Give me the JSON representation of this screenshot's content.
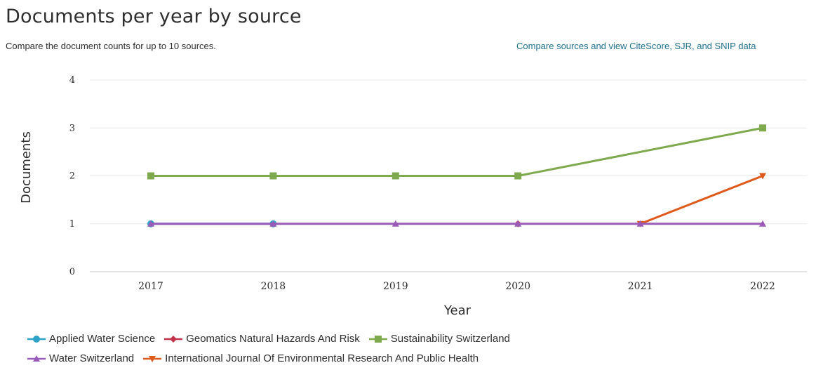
{
  "header": {
    "title": "Documents per year by source",
    "subtitle": "Compare the document counts for up to 10 sources.",
    "compare_link": "Compare sources and view CiteScore, SJR, and SNIP data"
  },
  "chart_data": {
    "type": "line",
    "xlabel": "Year",
    "ylabel": "Documents",
    "x": [
      "2017",
      "2018",
      "2019",
      "2020",
      "2021",
      "2022"
    ],
    "yticks": [
      "0",
      "1",
      "2",
      "3",
      "4"
    ],
    "ylim": [
      0,
      4
    ],
    "grid": true,
    "legend_position": "bottom-left",
    "series": [
      {
        "name": "Applied Water Science",
        "color": "#2ea3c9",
        "marker": "circle",
        "points": [
          [
            0,
            1
          ],
          [
            1,
            1
          ]
        ]
      },
      {
        "name": "Geomatics Natural Hazards And Risk",
        "color": "#c0314a",
        "marker": "diamond",
        "points": [
          [
            3,
            1
          ]
        ]
      },
      {
        "name": "Sustainability Switzerland",
        "color": "#7fa94d",
        "marker": "square",
        "points": [
          [
            0,
            2
          ],
          [
            1,
            2
          ],
          [
            2,
            2
          ],
          [
            3,
            2
          ],
          [
            5,
            3
          ]
        ]
      },
      {
        "name": "Water Switzerland",
        "color": "#9a5ab7",
        "marker": "triangle",
        "points": [
          [
            0,
            1
          ],
          [
            1,
            1
          ],
          [
            2,
            1
          ],
          [
            3,
            1
          ],
          [
            4,
            1
          ],
          [
            5,
            1
          ]
        ]
      },
      {
        "name": "International Journal Of Environmental Research And Public Health",
        "color": "#de5a1c",
        "marker": "triangle-down",
        "points": [
          [
            4,
            1
          ],
          [
            5,
            2
          ]
        ]
      }
    ]
  },
  "legend_rows": [
    [
      0,
      1,
      2
    ],
    [
      3,
      4
    ]
  ]
}
